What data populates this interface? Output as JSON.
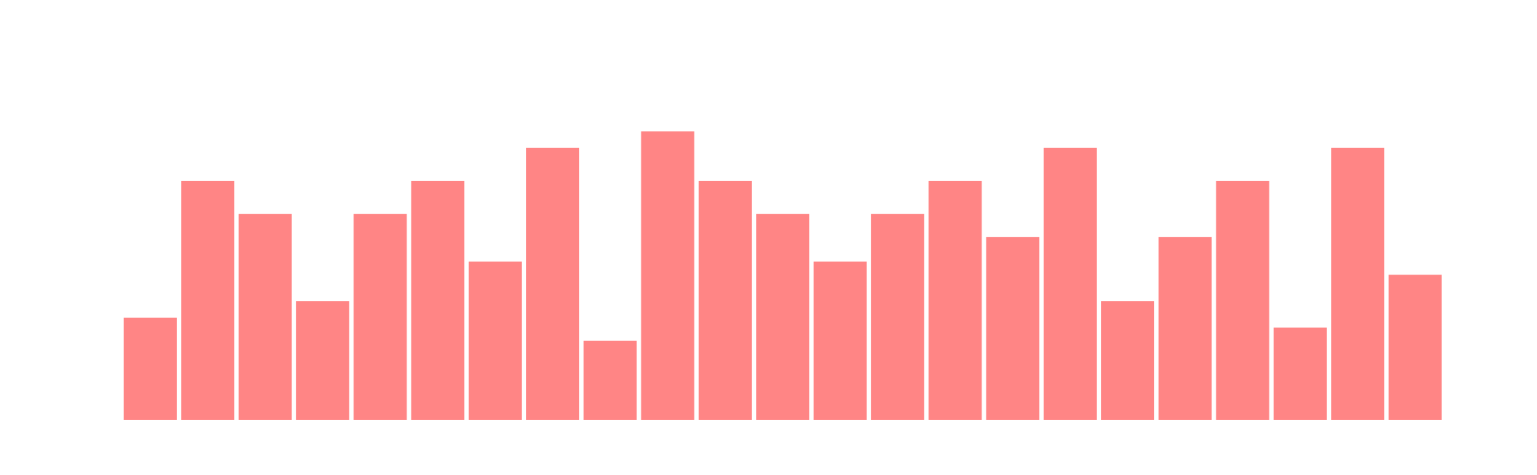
{
  "chart_data": {
    "type": "bar",
    "values": [
      6.2,
      14.5,
      12.5,
      7.2,
      12.5,
      14.5,
      9.6,
      16.5,
      4.8,
      17.5,
      14.5,
      12.5,
      9.6,
      12.5,
      14.5,
      11.1,
      16.5,
      7.2,
      11.1,
      14.5,
      5.6,
      16.5,
      8.8
    ],
    "color": "#ff8585",
    "ylim": [
      0,
      22
    ],
    "grid": false
  }
}
